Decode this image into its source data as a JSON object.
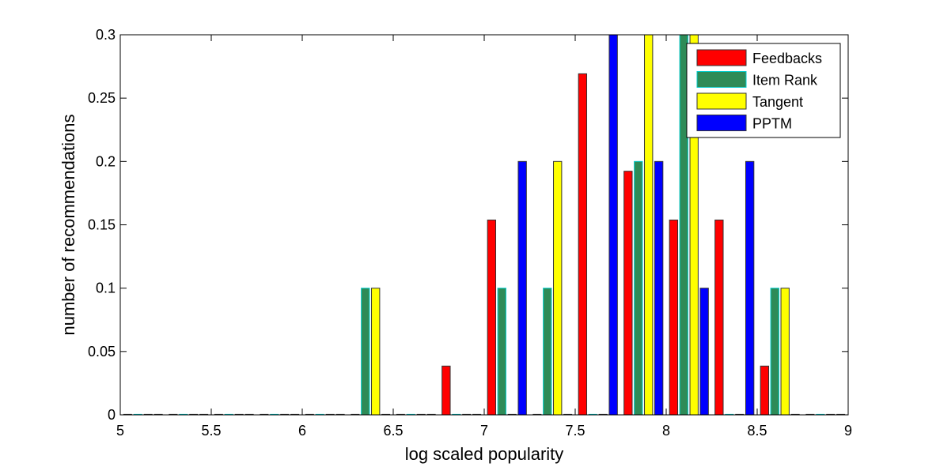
{
  "chart_data": {
    "type": "bar",
    "xlabel": "log scaled popularity",
    "ylabel": "number of recommendations",
    "xlim": [
      5,
      9
    ],
    "ylim": [
      0,
      0.3
    ],
    "xticks": [
      "5",
      "5.5",
      "6",
      "6.5",
      "7",
      "7.5",
      "8",
      "8.5",
      "9"
    ],
    "yticks": [
      "0",
      "0.05",
      "0.1",
      "0.15",
      "0.2",
      "0.25",
      "0.3"
    ],
    "grid": false,
    "legend_position": "top-right",
    "bin_centers": [
      5.125,
      5.375,
      5.625,
      5.875,
      6.125,
      6.375,
      6.625,
      6.875,
      7.125,
      7.375,
      7.625,
      7.875,
      8.125,
      8.375,
      8.625,
      8.875
    ],
    "series": [
      {
        "name": "Feedbacks",
        "color": "#ff0000",
        "values": [
          0,
          0,
          0,
          0,
          0,
          0,
          0,
          0.0385,
          0.1538,
          0,
          0.2692,
          0.1923,
          0.1538,
          0.1538,
          0.0385,
          0
        ]
      },
      {
        "name": "Item Rank",
        "color": "#2e8b57",
        "edge": "#00cccc",
        "values": [
          0,
          0,
          0,
          0,
          0,
          0.1,
          0,
          0,
          0.1,
          0.1,
          0,
          0.2,
          0.3,
          0,
          0.1,
          0
        ]
      },
      {
        "name": "Tangent",
        "color": "#ffff00",
        "values": [
          0,
          0,
          0,
          0,
          0,
          0.1,
          0,
          0,
          0,
          0.2,
          0,
          0.3,
          0.3,
          0,
          0.1,
          0
        ]
      },
      {
        "name": "PPTM",
        "color": "#0000ff",
        "values": [
          0,
          0,
          0,
          0,
          0,
          0,
          0,
          0,
          0.2,
          0,
          0.3,
          0.2,
          0.1,
          0.2,
          0,
          0
        ]
      }
    ]
  }
}
